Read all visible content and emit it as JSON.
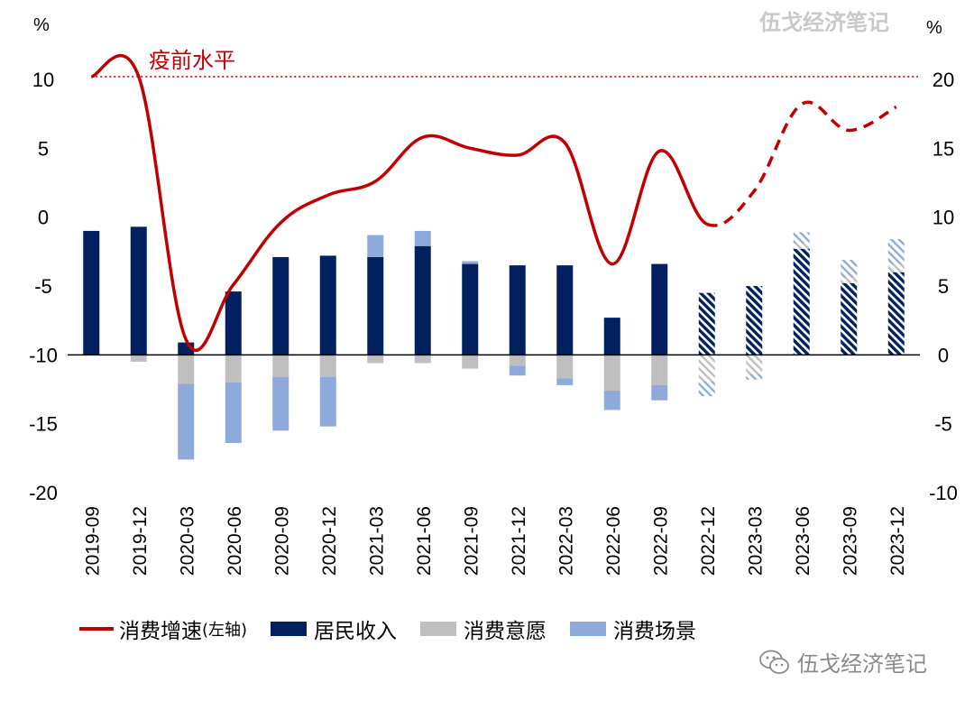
{
  "watermark": "伍戈经济笔记",
  "chart_data": {
    "type": "bar+line",
    "left_axis": {
      "unit_label": "%",
      "ticks": [
        10,
        5,
        0,
        -5,
        -10,
        -15,
        -20
      ],
      "range": [
        -20,
        10
      ]
    },
    "right_axis": {
      "unit_label": "%",
      "ticks": [
        20,
        15,
        10,
        5,
        0,
        -5,
        -10
      ],
      "range": [
        -10,
        20
      ]
    },
    "categories": [
      "2019-09",
      "2019-12",
      "2020-03",
      "2020-06",
      "2020-09",
      "2020-12",
      "2021-03",
      "2021-06",
      "2021-09",
      "2021-12",
      "2022-03",
      "2022-06",
      "2022-09",
      "2022-12",
      "2023-03",
      "2023-06",
      "2023-09",
      "2023-12"
    ],
    "forecast_from_index": 13,
    "reference_line": {
      "label": "疫前水平",
      "value": 10.2,
      "axis": "left"
    },
    "series": [
      {
        "name": "消费增速",
        "axis_note": "(左轴)",
        "type": "line",
        "axis": "left",
        "color": "#c00000",
        "values": [
          10.2,
          10.2,
          -8.9,
          -4.9,
          -0.4,
          1.6,
          2.6,
          5.8,
          5.0,
          4.5,
          5.4,
          -3.4,
          4.8,
          -0.5,
          1.9,
          8.2,
          6.3,
          8.0
        ]
      },
      {
        "name": "居民收入",
        "type": "bar",
        "axis": "right",
        "color": "#002060",
        "values": [
          9.0,
          9.3,
          0.9,
          4.6,
          7.1,
          7.2,
          7.1,
          7.9,
          6.6,
          6.5,
          6.5,
          2.7,
          6.6,
          4.5,
          5.0,
          7.7,
          5.2,
          6.0
        ]
      },
      {
        "name": "消费意愿",
        "type": "bar",
        "axis": "right",
        "color": "#bfbfbf",
        "values": [
          0.0,
          -0.5,
          -2.1,
          -2.0,
          -1.6,
          -1.6,
          -0.6,
          -0.6,
          -1.0,
          -0.8,
          -1.7,
          -2.6,
          -2.2,
          -1.9,
          -1.4,
          0.4,
          0.4,
          0.6
        ]
      },
      {
        "name": "消费场景",
        "type": "bar",
        "axis": "right",
        "color": "#8eaadb",
        "values": [
          0.0,
          0.0,
          -5.5,
          -4.4,
          -3.9,
          -3.6,
          1.6,
          1.1,
          0.2,
          -0.7,
          -0.5,
          -1.4,
          -1.1,
          -1.1,
          -0.4,
          0.8,
          1.3,
          1.8
        ]
      }
    ]
  }
}
